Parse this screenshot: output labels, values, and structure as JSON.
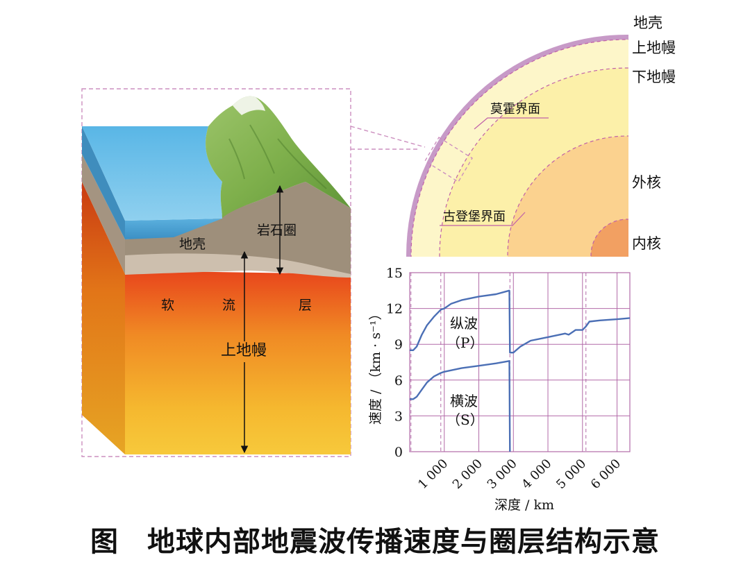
{
  "block": {
    "crust_label": "地壳",
    "lithosphere_label": "岩石圈",
    "asthenosphere_chars": [
      "软",
      "流",
      "层"
    ],
    "upper_mantle_label": "上地幔"
  },
  "quadrant": {
    "layers": [
      "地壳",
      "上地幔",
      "下地幔",
      "外核",
      "内核"
    ],
    "moho_label": "莫霍界面",
    "gutenberg_label": "古登堡界面"
  },
  "chart_data": {
    "type": "line",
    "xlabel": "深度 / km",
    "ylabel": "速度 / （km · s⁻¹）",
    "xlim": [
      0,
      6371
    ],
    "ylim": [
      0,
      15
    ],
    "x_ticks": [
      1000,
      2000,
      3000,
      4000,
      5000,
      6000
    ],
    "x_tick_labels": [
      "1 000",
      "2 000",
      "3 000",
      "4 000",
      "5 000",
      "6 000"
    ],
    "y_ticks": [
      0,
      3,
      6,
      9,
      12,
      15
    ],
    "y_tick_labels": [
      "0",
      "3",
      "6",
      "9",
      "12",
      "15"
    ],
    "boundaries": [
      35,
      900,
      2900,
      5100
    ],
    "series": [
      {
        "name": "纵波（P）",
        "label_lines": [
          "纵波",
          "（P）"
        ],
        "x": [
          0,
          100,
          200,
          350,
          500,
          700,
          900,
          1000,
          1200,
          1500,
          2000,
          2500,
          2880,
          2885,
          2900,
          3000,
          3200,
          3500,
          4000,
          4500,
          4600,
          4700,
          4800,
          5000,
          5100,
          5200,
          5500,
          6000,
          6371
        ],
        "y": [
          8.5,
          8.5,
          8.8,
          9.8,
          10.6,
          11.3,
          11.9,
          12.0,
          12.4,
          12.7,
          13.0,
          13.2,
          13.5,
          13.5,
          8.3,
          8.3,
          8.8,
          9.3,
          9.6,
          9.9,
          9.8,
          10.0,
          10.2,
          10.2,
          10.5,
          10.9,
          11.0,
          11.1,
          11.2
        ]
      },
      {
        "name": "横波（S）",
        "label_lines": [
          "横波",
          "（S）"
        ],
        "x": [
          0,
          100,
          200,
          350,
          500,
          700,
          900,
          1000,
          1500,
          2000,
          2500,
          2880,
          2885,
          2900
        ],
        "y": [
          4.4,
          4.4,
          4.6,
          5.2,
          5.8,
          6.3,
          6.6,
          6.7,
          7.0,
          7.2,
          7.4,
          7.6,
          7.6,
          0
        ]
      }
    ]
  },
  "caption": "图　地球内部地震波传播速度与圈层结构示意"
}
